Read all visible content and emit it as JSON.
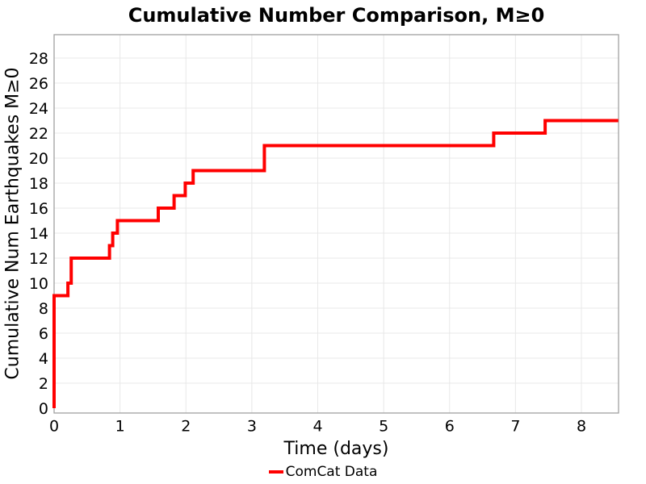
{
  "figure": {
    "background": "#ffffff"
  },
  "chart_data": {
    "type": "line",
    "subtype": "cumulative-step",
    "title": "Cumulative Number Comparison, M≥0",
    "xlabel": "Time (days)",
    "ylabel": "Cumulative Num Earthquakes M≥0",
    "xlim": [
      0,
      8.56
    ],
    "ylim": [
      0,
      30
    ],
    "xticks": [
      0,
      1,
      2,
      3,
      4,
      5,
      6,
      7,
      8
    ],
    "yticks": [
      0,
      2,
      4,
      6,
      8,
      10,
      12,
      14,
      16,
      18,
      20,
      22,
      24,
      26,
      28
    ],
    "grid": true,
    "grid_color": "#e8e8e8",
    "border_color": "#a0a0a0",
    "tick_label_color": "#000000",
    "legend_position": "bottom-center",
    "series": [
      {
        "name": "ComCat Data",
        "color": "#ff0000",
        "line_width": 4,
        "start": {
          "t": 0.0,
          "cumulative": 0
        },
        "step_events": [
          {
            "t": 0.0,
            "cumulative": 9
          },
          {
            "t": 0.21,
            "cumulative": 10
          },
          {
            "t": 0.26,
            "cumulative": 12
          },
          {
            "t": 0.84,
            "cumulative": 13
          },
          {
            "t": 0.89,
            "cumulative": 14
          },
          {
            "t": 0.96,
            "cumulative": 15
          },
          {
            "t": 1.58,
            "cumulative": 16
          },
          {
            "t": 1.82,
            "cumulative": 17
          },
          {
            "t": 1.99,
            "cumulative": 18
          },
          {
            "t": 2.11,
            "cumulative": 19
          },
          {
            "t": 3.19,
            "cumulative": 21
          },
          {
            "t": 6.67,
            "cumulative": 22
          },
          {
            "t": 7.45,
            "cumulative": 23
          }
        ],
        "end_t": 8.56,
        "final_value": 23
      }
    ]
  }
}
